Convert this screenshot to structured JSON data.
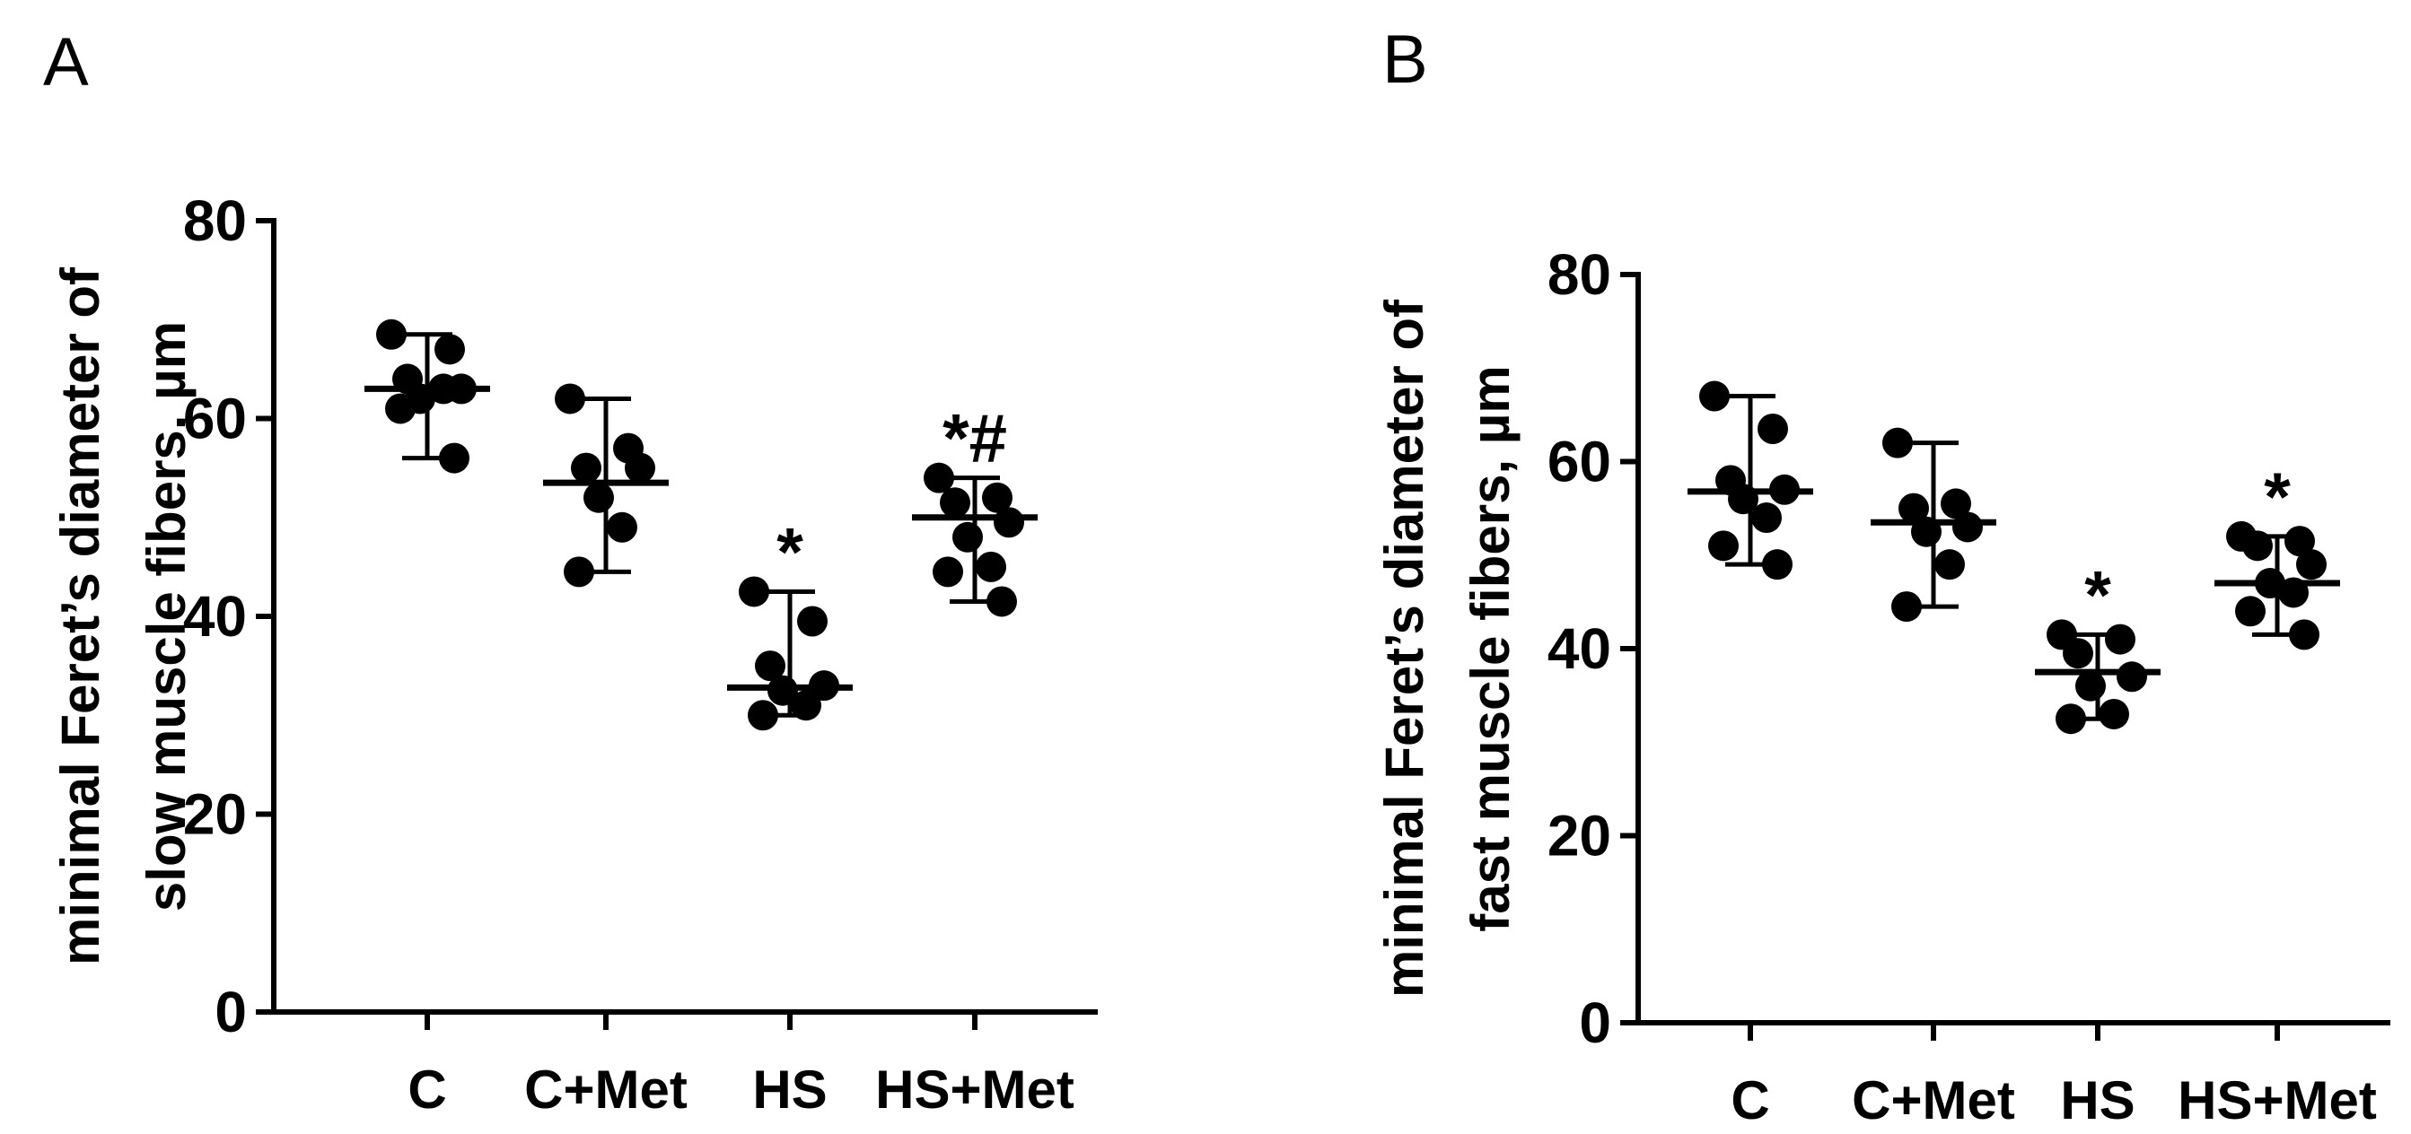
{
  "colors": {
    "ink": "#000000",
    "background": "#ffffff"
  },
  "chart_data": [
    {
      "type": "scatter",
      "panel_label": "A",
      "ylabel": [
        "minimal Feret’s diameter of",
        "slow muscle fibers, µm"
      ],
      "xlabel": "",
      "ylim": [
        0,
        80
      ],
      "yticks": [
        0,
        20,
        40,
        60,
        80
      ],
      "categories": [
        "C",
        "C+Met",
        "HS",
        "HS+Met"
      ],
      "series": [
        {
          "category": "C",
          "points": [
            68.5,
            67,
            64,
            63,
            62,
            63,
            61,
            56
          ],
          "mean": 63,
          "error": [
            56,
            68.5
          ],
          "annotation": ""
        },
        {
          "category": "C+Met",
          "points": [
            62,
            57,
            55,
            55,
            52,
            49,
            44.5
          ],
          "mean": 53.5,
          "error": [
            44.5,
            62
          ],
          "annotation": ""
        },
        {
          "category": "HS",
          "points": [
            42.5,
            39.5,
            35,
            33,
            32.5,
            31,
            30
          ],
          "mean": 32.8,
          "error": [
            30,
            42.5
          ],
          "annotation": "*"
        },
        {
          "category": "HS+Met",
          "points": [
            54,
            52,
            51.5,
            49.5,
            48,
            45,
            44.5,
            41.5
          ],
          "mean": 50,
          "error": [
            41.5,
            54
          ],
          "annotation": "*#"
        }
      ]
    },
    {
      "type": "scatter",
      "panel_label": "B",
      "ylabel": [
        "minimal Feret’s diameter of",
        "fast muscle fibers, µm"
      ],
      "xlabel": "",
      "ylim": [
        0,
        80
      ],
      "yticks": [
        0,
        20,
        40,
        60,
        80
      ],
      "categories": [
        "C",
        "C+Met",
        "HS",
        "HS+Met"
      ],
      "series": [
        {
          "category": "C",
          "points": [
            67,
            63.5,
            58,
            57,
            56,
            54,
            51,
            49
          ],
          "mean": 56.8,
          "error": [
            49,
            67
          ],
          "annotation": ""
        },
        {
          "category": "C+Met",
          "points": [
            62,
            55.5,
            55,
            53,
            52.5,
            49,
            44.5
          ],
          "mean": 53.5,
          "error": [
            44.5,
            62
          ],
          "annotation": ""
        },
        {
          "category": "HS",
          "points": [
            41.5,
            41,
            39.5,
            37,
            36,
            33,
            32.5
          ],
          "mean": 37.5,
          "error": [
            32.5,
            41.5
          ],
          "annotation": "*"
        },
        {
          "category": "HS+Met",
          "points": [
            52,
            51.5,
            51,
            49,
            47,
            46,
            44,
            41.5
          ],
          "mean": 47,
          "error": [
            41.5,
            52
          ],
          "annotation": "*"
        }
      ]
    }
  ]
}
